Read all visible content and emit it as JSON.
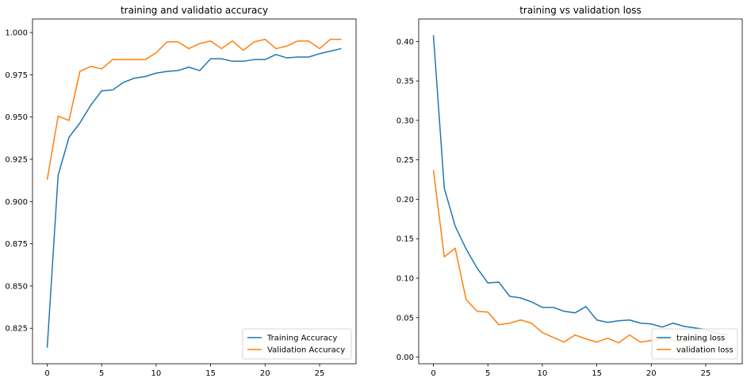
{
  "chart_data": [
    {
      "type": "line",
      "title": "training and validatio accuracy",
      "xlabel": "",
      "ylabel": "",
      "xlim": [
        -1.35,
        28.35
      ],
      "ylim": [
        0.804,
        1.008
      ],
      "xticks": [
        0,
        5,
        10,
        15,
        20,
        25
      ],
      "yticks": [
        0.825,
        0.85,
        0.875,
        0.9,
        0.925,
        0.95,
        0.975,
        1.0
      ],
      "ytick_labels": [
        "0.825",
        "0.850",
        "0.875",
        "0.900",
        "0.925",
        "0.950",
        "0.975",
        "1.000"
      ],
      "grid": false,
      "legend": "lower right",
      "x": [
        0,
        1,
        2,
        3,
        4,
        5,
        6,
        7,
        8,
        9,
        10,
        11,
        12,
        13,
        14,
        15,
        16,
        17,
        18,
        19,
        20,
        21,
        22,
        23,
        24,
        25,
        26,
        27
      ],
      "series": [
        {
          "name": "Training Accuracy",
          "color": "#1f77b4",
          "values": [
            0.8135,
            0.9155,
            0.938,
            0.9465,
            0.957,
            0.9655,
            0.966,
            0.9705,
            0.973,
            0.974,
            0.976,
            0.977,
            0.9775,
            0.9795,
            0.9775,
            0.9845,
            0.9845,
            0.983,
            0.983,
            0.984,
            0.984,
            0.987,
            0.985,
            0.9855,
            0.9855,
            0.9875,
            0.989,
            0.9905
          ]
        },
        {
          "name": "Validation Accuracy",
          "color": "#ff7f0e",
          "values": [
            0.913,
            0.9505,
            0.948,
            0.977,
            0.98,
            0.9785,
            0.984,
            0.984,
            0.984,
            0.984,
            0.988,
            0.9945,
            0.9945,
            0.9905,
            0.9935,
            0.995,
            0.9905,
            0.995,
            0.9895,
            0.9945,
            0.996,
            0.9905,
            0.992,
            0.995,
            0.995,
            0.9905,
            0.996,
            0.996
          ]
        }
      ]
    },
    {
      "type": "line",
      "title": "training vs validation loss",
      "xlabel": "",
      "ylabel": "",
      "xlim": [
        -1.35,
        28.35
      ],
      "ylim": [
        -0.0085,
        0.4285
      ],
      "xticks": [
        0,
        5,
        10,
        15,
        20,
        25
      ],
      "yticks": [
        0.0,
        0.05,
        0.1,
        0.15,
        0.2,
        0.25,
        0.3,
        0.35,
        0.4
      ],
      "ytick_labels": [
        "0.00",
        "0.05",
        "0.10",
        "0.15",
        "0.20",
        "0.25",
        "0.30",
        "0.35",
        "0.40"
      ],
      "grid": false,
      "legend": "lower right",
      "x": [
        0,
        1,
        2,
        3,
        4,
        5,
        6,
        7,
        8,
        9,
        10,
        11,
        12,
        13,
        14,
        15,
        16,
        17,
        18,
        19,
        20,
        21,
        22,
        23,
        24,
        25,
        26,
        27
      ],
      "series": [
        {
          "name": "training loss",
          "color": "#1f77b4",
          "values": [
            0.408,
            0.214,
            0.166,
            0.137,
            0.113,
            0.094,
            0.095,
            0.077,
            0.075,
            0.07,
            0.063,
            0.063,
            0.058,
            0.056,
            0.064,
            0.047,
            0.044,
            0.046,
            0.047,
            0.043,
            0.042,
            0.038,
            0.043,
            0.039,
            0.037,
            0.035,
            0.03,
            0.028
          ]
        },
        {
          "name": "validation loss",
          "color": "#ff7f0e",
          "values": [
            0.237,
            0.127,
            0.138,
            0.073,
            0.058,
            0.057,
            0.041,
            0.043,
            0.047,
            0.043,
            0.031,
            0.025,
            0.019,
            0.028,
            0.023,
            0.019,
            0.024,
            0.018,
            0.028,
            0.019,
            0.021,
            0.023,
            0.021,
            0.02,
            0.022,
            0.021,
            0.024,
            0.024
          ]
        }
      ]
    }
  ]
}
